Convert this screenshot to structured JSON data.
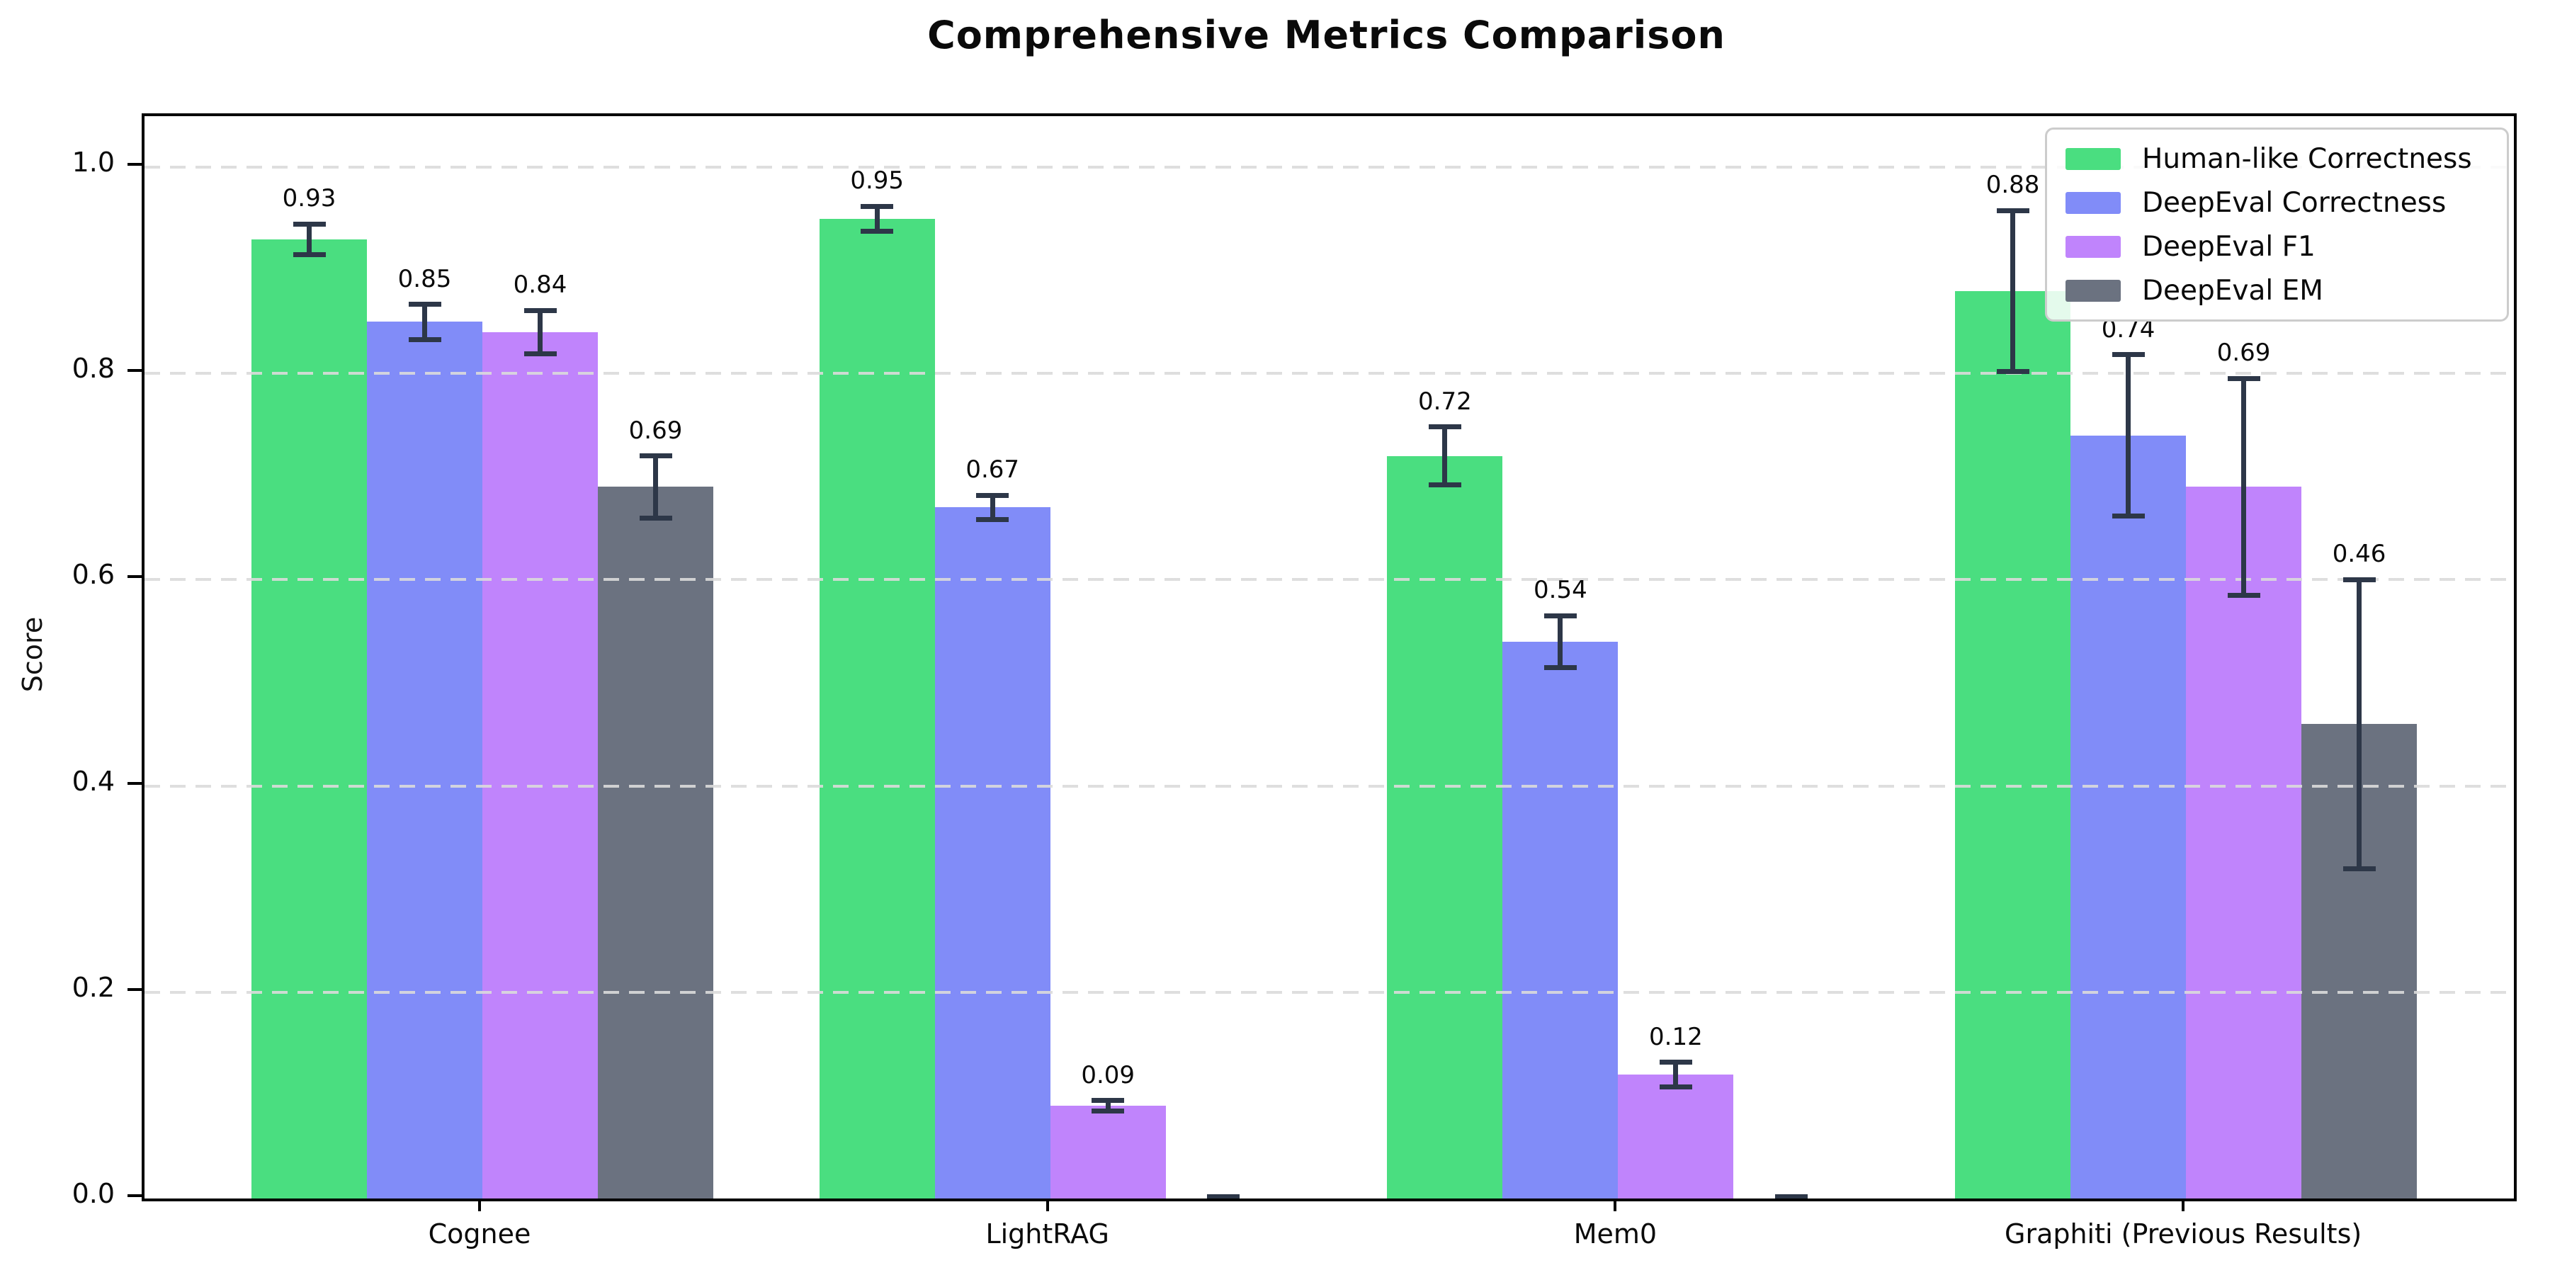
{
  "chart_data": {
    "type": "bar",
    "title": "Comprehensive Metrics Comparison",
    "xlabel": "",
    "ylabel": "Score",
    "categories": [
      "Cognee",
      "LightRAG",
      "Mem0",
      "Graphiti (Previous Results)"
    ],
    "series": [
      {
        "name": "Human-like Correctness",
        "color": "#4ade80",
        "values": [
          0.93,
          0.95,
          0.72,
          0.88
        ],
        "errors": [
          0.015,
          0.012,
          0.028,
          0.078
        ],
        "labels": [
          "0.93",
          "0.95",
          "0.72",
          "0.88"
        ]
      },
      {
        "name": "DeepEval Correctness",
        "color": "#818cf8",
        "values": [
          0.85,
          0.67,
          0.54,
          0.74
        ],
        "errors": [
          0.017,
          0.012,
          0.025,
          0.078
        ],
        "labels": [
          "0.85",
          "0.67",
          "0.54",
          "0.74"
        ]
      },
      {
        "name": "DeepEval F1",
        "color": "#c084fc",
        "values": [
          0.84,
          0.09,
          0.12,
          0.69
        ],
        "errors": [
          0.021,
          0.005,
          0.012,
          0.105
        ],
        "labels": [
          "0.84",
          "0.09",
          "0.12",
          "0.69"
        ]
      },
      {
        "name": "DeepEval EM",
        "color": "#6b7280",
        "values": [
          0.69,
          0.0,
          0.0,
          0.46
        ],
        "errors": [
          0.03,
          0.002,
          0.002,
          0.14
        ],
        "labels": [
          "0.69",
          "",
          "",
          "0.46"
        ]
      }
    ],
    "ylim": [
      0.0,
      1.05
    ],
    "yticks": [
      "0.0",
      "0.2",
      "0.4",
      "0.6",
      "0.8",
      "1.0"
    ],
    "grid": "horizontal-dashed",
    "legend_position": "upper right",
    "error_bar_color": "#2d3748",
    "background_color": "#ffffff"
  }
}
